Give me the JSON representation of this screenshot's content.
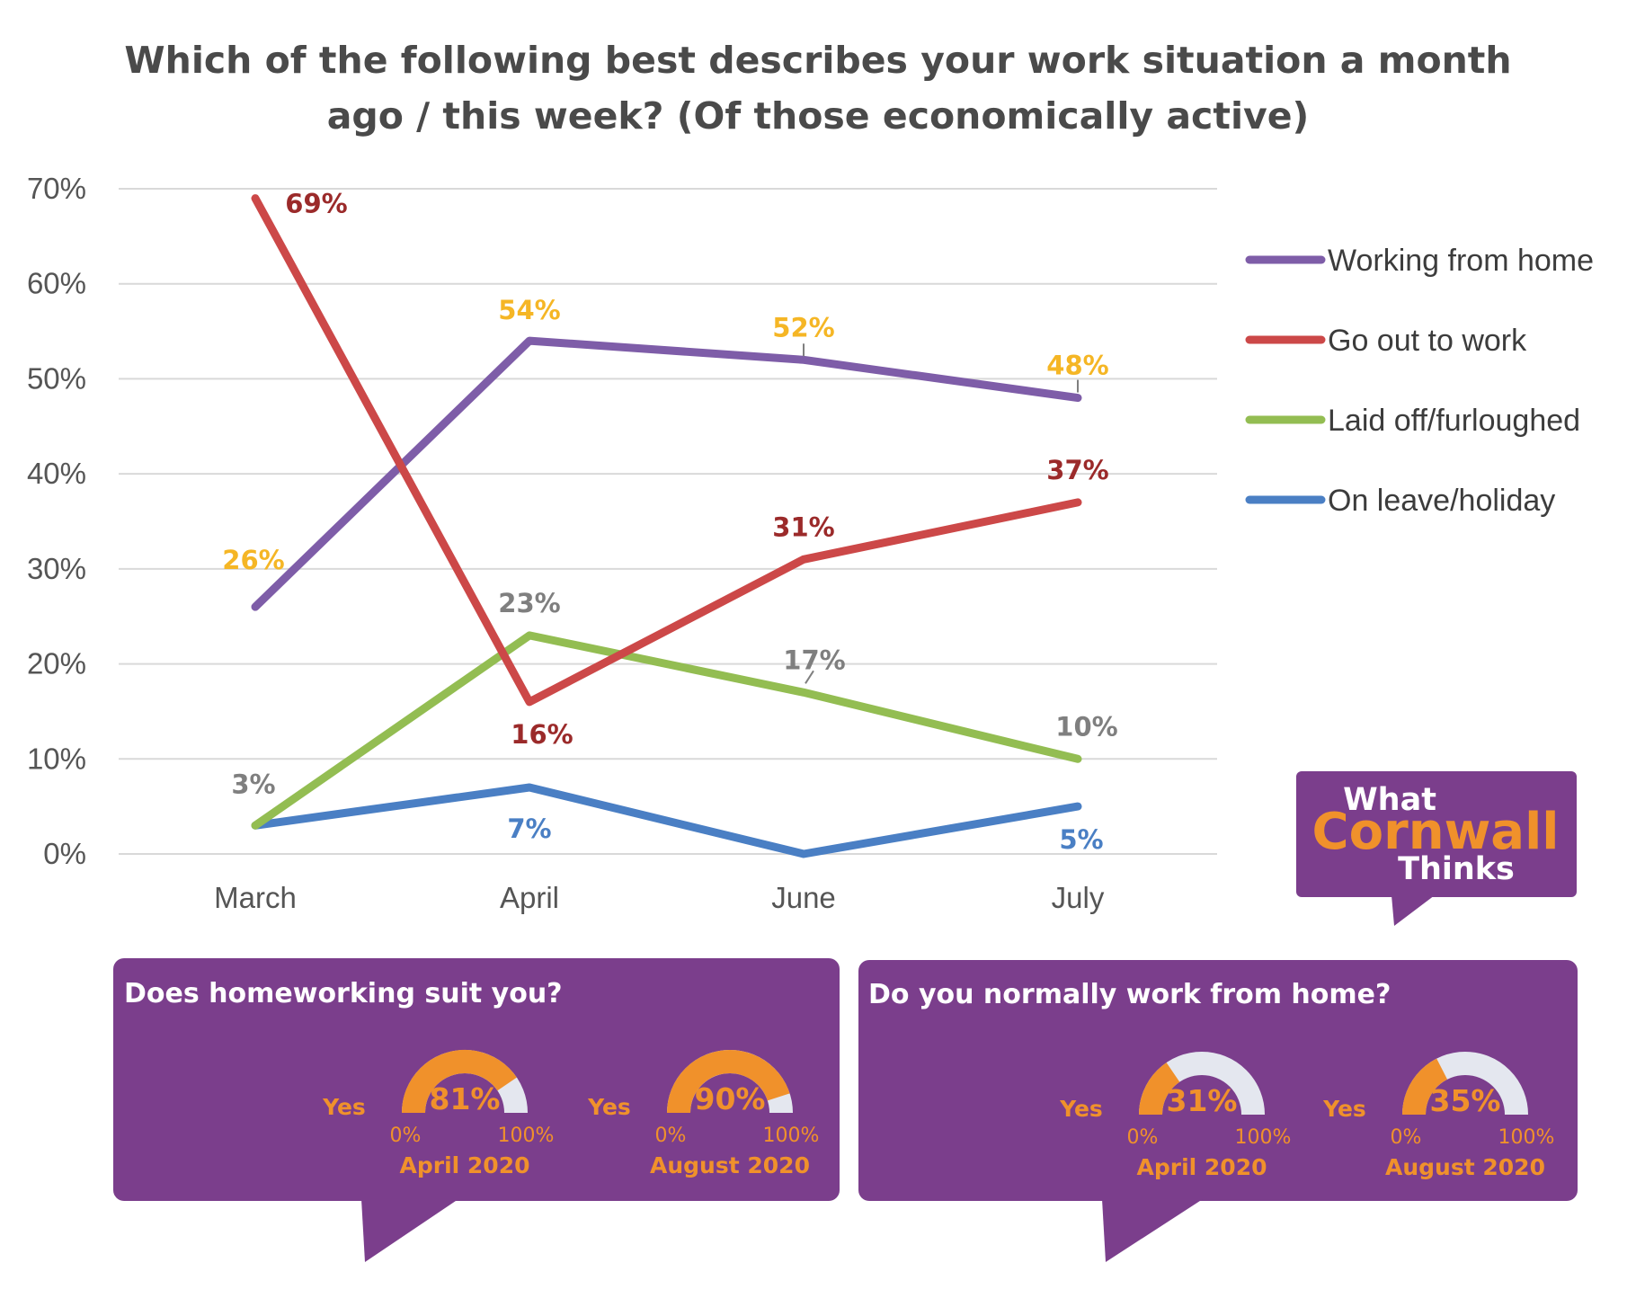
{
  "chart_data": {
    "type": "line",
    "title": "Which of the following best describes your work situation a month ago / this week? (Of those economically active)",
    "title_lines": [
      "Which of the following best describes your work situation a month",
      "ago / this week? (Of those economically active)"
    ],
    "categories": [
      "March",
      "April",
      "June",
      "July"
    ],
    "y_ticks": [
      "0%",
      "10%",
      "20%",
      "30%",
      "40%",
      "50%",
      "60%",
      "70%"
    ],
    "ylim": [
      0,
      70
    ],
    "grid": true,
    "legend_position": "right",
    "series": [
      {
        "name": "Working from home",
        "color": "#7e5da8",
        "values": [
          26,
          54,
          52,
          48
        ],
        "labels": [
          "26%",
          "54%",
          "52%",
          "48%"
        ],
        "label_color": "#f5b625"
      },
      {
        "name": "Go out to work",
        "color": "#cc4848",
        "values": [
          69,
          16,
          31,
          37
        ],
        "labels": [
          "69%",
          "16%",
          "31%",
          "37%"
        ],
        "label_color": "#9b2a2a"
      },
      {
        "name": "Laid off/furloughed",
        "color": "#93bd52",
        "values": [
          3,
          23,
          17,
          10
        ],
        "labels": [
          "3%",
          "23%",
          "17%",
          "10%"
        ],
        "label_color": "#7f7f7f"
      },
      {
        "name": "On leave/holiday",
        "color": "#4a7fc4",
        "values": [
          3,
          7,
          0,
          5
        ],
        "labels": [
          "",
          "7%",
          "",
          "5%"
        ],
        "label_color": "#4a7fc4"
      }
    ]
  },
  "logo": {
    "line1": "What",
    "line2": "Cornwall",
    "line3": "Thinks"
  },
  "panels": [
    {
      "title": "Does homeworking suit you?",
      "gauges": [
        {
          "yes": "Yes",
          "value": 81,
          "label": "81%",
          "min": "0%",
          "max": "100%",
          "date": "April 2020"
        },
        {
          "yes": "Yes",
          "value": 90,
          "label": "90%",
          "min": "0%",
          "max": "100%",
          "date": "August 2020"
        }
      ]
    },
    {
      "title": "Do you normally work from home?",
      "gauges": [
        {
          "yes": "Yes",
          "value": 31,
          "label": "31%",
          "min": "0%",
          "max": "100%",
          "date": "April 2020"
        },
        {
          "yes": "Yes",
          "value": 35,
          "label": "35%",
          "min": "0%",
          "max": "100%",
          "date": "August 2020"
        }
      ]
    }
  ],
  "colors": {
    "purple": "#7b3e8c",
    "orange": "#f0912b",
    "track": "#e4e7ef",
    "grid": "#d9d9d9"
  }
}
